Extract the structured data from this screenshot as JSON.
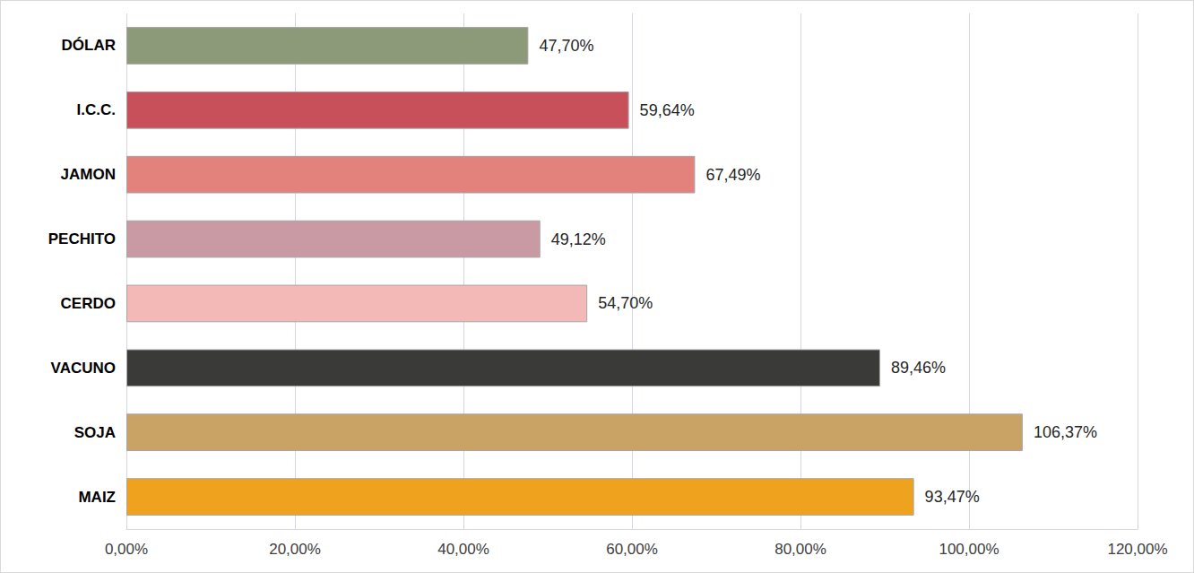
{
  "chart_data": {
    "type": "bar",
    "orientation": "horizontal",
    "categories": [
      "DÓLAR",
      "I.C.C.",
      "JAMON",
      "PECHITO",
      "CERDO",
      "VACUNO",
      "SOJA",
      "MAIZ"
    ],
    "values": [
      47.7,
      59.64,
      67.49,
      49.12,
      54.7,
      89.46,
      106.37,
      93.47
    ],
    "value_labels": [
      "47,70%",
      "59,64%",
      "67,49%",
      "49,12%",
      "54,70%",
      "89,46%",
      "106,37%",
      "93,47%"
    ],
    "colors": [
      "#8c9a7a",
      "#c8505a",
      "#e3817c",
      "#c99aa4",
      "#f3b9b7",
      "#3a3a38",
      "#c9a266",
      "#efa21e"
    ],
    "xlim": [
      0,
      120
    ],
    "xticks": [
      {
        "value": 0,
        "label": "0,00%"
      },
      {
        "value": 20,
        "label": "20,00%"
      },
      {
        "value": 40,
        "label": "40,00%"
      },
      {
        "value": 60,
        "label": "60,00%"
      },
      {
        "value": 80,
        "label": "80,00%"
      },
      {
        "value": 100,
        "label": "100,00%"
      },
      {
        "value": 120,
        "label": "120,00%"
      }
    ],
    "grid": true,
    "data_labels": true
  }
}
